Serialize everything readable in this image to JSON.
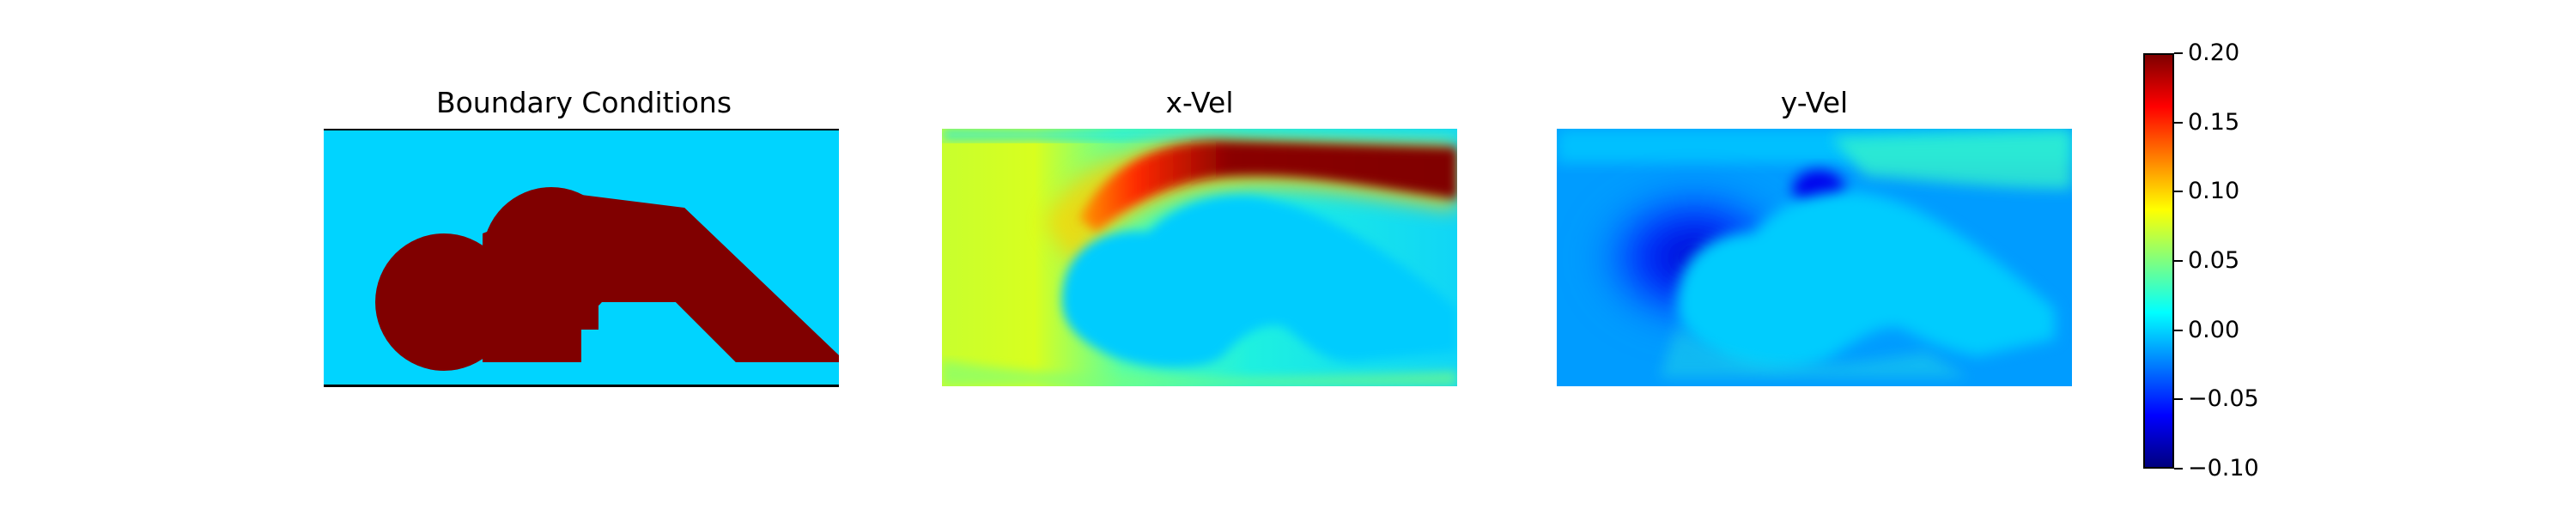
{
  "chart_data": [
    {
      "type": "heatmap",
      "title": "Boundary Conditions",
      "colormap": "jet",
      "values_shown": [
        "background fluid domain",
        "obstacle (max value)"
      ],
      "grid": false
    },
    {
      "type": "heatmap",
      "title": "x-Vel",
      "colormap": "jet",
      "approx_range": [
        0.0,
        0.2
      ],
      "grid": false
    },
    {
      "type": "heatmap",
      "title": "y-Vel",
      "colormap": "jet",
      "approx_range": [
        -0.1,
        0.05
      ],
      "grid": false
    }
  ],
  "colorbar": {
    "colormap": "jet",
    "vmin": -0.1,
    "vmax": 0.2,
    "ticks": [
      {
        "value": 0.2,
        "label": "0.20"
      },
      {
        "value": 0.15,
        "label": "0.15"
      },
      {
        "value": 0.1,
        "label": "0.10"
      },
      {
        "value": 0.05,
        "label": "0.05"
      },
      {
        "value": 0.0,
        "label": "0.00"
      },
      {
        "value": -0.05,
        "label": "−0.05"
      },
      {
        "value": -0.1,
        "label": "−0.10"
      }
    ]
  },
  "colors": {
    "fluid": "#00d4ff",
    "obstacle": "#800000",
    "jet_stops": [
      "#00007f",
      "#0000ff",
      "#007fff",
      "#00ffff",
      "#7fff7f",
      "#ffff00",
      "#ff7f00",
      "#ff0000",
      "#7f0000"
    ]
  }
}
